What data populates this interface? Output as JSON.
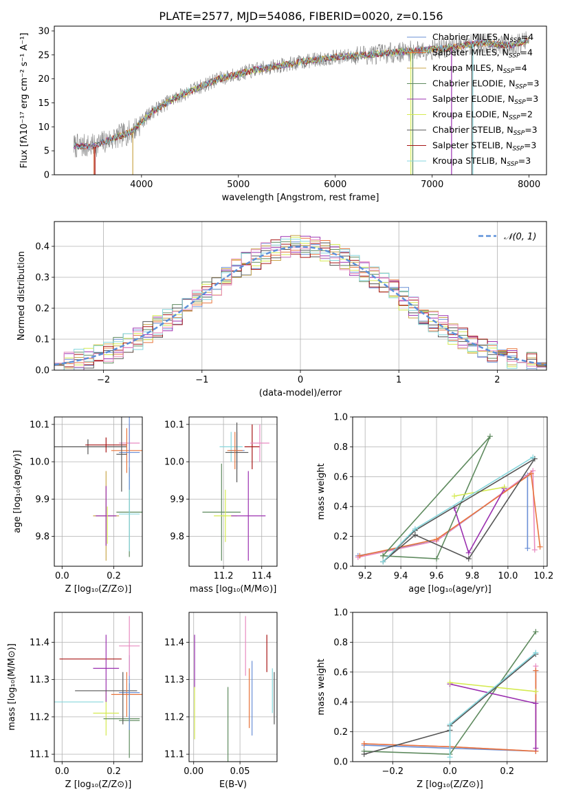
{
  "figure_title": "PLATE=2577, MJD=54086, FIBERID=0020, z=0.156",
  "colors": {
    "chabrier_miles": "#6a8fd6",
    "salpeter_miles": "#e8743b",
    "kroupa_miles": "#c9a64a",
    "chabrier_elodie": "#5e8a5e",
    "salpeter_elodie": "#9b30b0",
    "kroupa_elodie": "#d4ea4f",
    "chabrier_stelib": "#555555",
    "salpeter_stelib": "#a61414",
    "kroupa_stelib": "#86d6dc",
    "pink": "#e88ac0",
    "normal_curve": "#5b8fd9",
    "data_spectrum": "#7f7f7f"
  },
  "chart_data": [
    {
      "id": "spectrum",
      "type": "line",
      "title": "PLATE=2577, MJD=54086, FIBERID=0020, z=0.156",
      "xlabel": "wavelength [Angstrom, rest frame]",
      "ylabel": "Flux [fλ10⁻¹⁷ erg cm⁻² s⁻¹ A⁻¹]",
      "xlim": [
        3100,
        8180
      ],
      "ylim": [
        0,
        31
      ],
      "xticks": [
        4000,
        5000,
        6000,
        7000,
        8000
      ],
      "yticks": [
        0,
        5,
        10,
        15,
        20,
        25,
        30
      ],
      "legend_position": "top-right",
      "continuum": {
        "x": [
          3300,
          3500,
          3700,
          3900,
          4000,
          4100,
          4300,
          4500,
          4800,
          5000,
          5200,
          5500,
          5800,
          6000,
          6300,
          6600,
          6900,
          7200,
          7500,
          7800,
          8000
        ],
        "y": [
          6,
          6,
          7.5,
          9,
          11,
          13,
          15.5,
          17.5,
          20,
          21,
          22,
          23,
          24,
          24.5,
          25,
          25.5,
          26,
          26.5,
          27.5,
          27,
          28
        ]
      },
      "series": [
        {
          "name": "Chabrier MILES, N_SSP=4",
          "color_key": "chabrier_miles"
        },
        {
          "name": "Salpeter MILES, N_SSP=4",
          "color_key": "salpeter_miles"
        },
        {
          "name": "Kroupa MILES, N_SSP=4",
          "color_key": "kroupa_miles"
        },
        {
          "name": "Chabrier ELODIE, N_SSP=3",
          "color_key": "chabrier_elodie"
        },
        {
          "name": "Salpeter ELODIE, N_SSP=3",
          "color_key": "salpeter_elodie"
        },
        {
          "name": "Kroupa ELODIE, N_SSP=2",
          "color_key": "kroupa_elodie"
        },
        {
          "name": "Chabrier STELIB, N_SSP=3",
          "color_key": "chabrier_stelib"
        },
        {
          "name": "Salpeter STELIB, N_SSP=3",
          "color_key": "salpeter_stelib"
        },
        {
          "name": "Kroupa STELIB, N_SSP=3",
          "color_key": "kroupa_stelib"
        }
      ],
      "legend": [
        {
          "prefix": "Chabrier MILES, N",
          "sub": "SSP",
          "suffix": "=4",
          "color_key": "chabrier_miles"
        },
        {
          "prefix": "Salpeter MILES, N",
          "sub": "SSP",
          "suffix": "=4",
          "color_key": "salpeter_miles"
        },
        {
          "prefix": "Kroupa MILES, N",
          "sub": "SSP",
          "suffix": "=4",
          "color_key": "kroupa_miles"
        },
        {
          "prefix": "Chabrier ELODIE, N",
          "sub": "SSP",
          "suffix": "=3",
          "color_key": "chabrier_elodie"
        },
        {
          "prefix": "Salpeter ELODIE, N",
          "sub": "SSP",
          "suffix": "=3",
          "color_key": "salpeter_elodie"
        },
        {
          "prefix": "Kroupa ELODIE, N",
          "sub": "SSP",
          "suffix": "=2",
          "color_key": "kroupa_elodie"
        },
        {
          "prefix": "Chabrier STELIB, N",
          "sub": "SSP",
          "suffix": "=3",
          "color_key": "chabrier_stelib"
        },
        {
          "prefix": "Salpeter STELIB, N",
          "sub": "SSP",
          "suffix": "=3",
          "color_key": "salpeter_stelib"
        },
        {
          "prefix": "Kroupa STELIB, N",
          "sub": "SSP",
          "suffix": "=3",
          "color_key": "kroupa_stelib"
        }
      ]
    },
    {
      "id": "residuals",
      "type": "line",
      "xlabel": "(data-model)/error",
      "ylabel": "Normed distribution",
      "xlim": [
        -2.5,
        2.5
      ],
      "ylim": [
        0,
        0.48
      ],
      "xticks": [
        -2,
        -1,
        0,
        1,
        2
      ],
      "xtick_labels": [
        "−2",
        "−1",
        "0",
        "1",
        "2"
      ],
      "yticks": [
        0.0,
        0.1,
        0.2,
        0.3,
        0.4
      ],
      "ytick_labels": [
        "0.0",
        "0.1",
        "0.2",
        "0.3",
        "0.4"
      ],
      "grid": true,
      "legend_position": "top-right",
      "legend_label": "𝒩(0, 1)",
      "curve": {
        "name": "N(0, 1)",
        "mean": 0,
        "sigma": 1
      }
    },
    {
      "id": "age_vs_Z",
      "type": "scatter",
      "xlabel": "Z [log₁₀(Z/Z⊙)]",
      "ylabel": "age  [log₁₀(age/yr)]",
      "xlim": [
        -0.03,
        0.31
      ],
      "ylim": [
        9.72,
        10.12
      ],
      "xticks": [
        0.0,
        0.2
      ],
      "xtick_labels": [
        "0.0",
        "0.2"
      ],
      "yticks": [
        9.8,
        9.9,
        10.0,
        10.1
      ],
      "ytick_labels": [
        "9.8",
        "9.9",
        "10.0",
        "10.1"
      ],
      "grid": true,
      "points": [
        {
          "x": 0.17,
          "y": 9.855,
          "xerr": 0.05,
          "yerr": 0.12,
          "color_key": "kroupa_miles"
        },
        {
          "x": 0.17,
          "y": 9.855,
          "xerr": 0.04,
          "yerr": 0.08,
          "color_key": "salpeter_elodie"
        },
        {
          "x": 0.175,
          "y": 9.83,
          "xerr": 0.0,
          "yerr": 0.05,
          "color_key": "kroupa_elodie"
        },
        {
          "x": 0.26,
          "y": 9.865,
          "xerr": 0.05,
          "yerr": 0.12,
          "color_key": "chabrier_elodie"
        },
        {
          "x": 0.26,
          "y": 9.86,
          "xerr": 0.04,
          "yerr": 0.1,
          "color_key": "kroupa_stelib"
        },
        {
          "x": 0.1,
          "y": 10.04,
          "xerr": 0.15,
          "yerr": 0.02,
          "color_key": "chabrier_stelib"
        },
        {
          "x": 0.17,
          "y": 10.045,
          "xerr": 0.08,
          "yerr": 0.02,
          "color_key": "salpeter_stelib"
        },
        {
          "x": 0.26,
          "y": 10.05,
          "xerr": 0.04,
          "yerr": 0.05,
          "color_key": "pink"
        },
        {
          "x": 0.25,
          "y": 10.03,
          "xerr": 0.06,
          "yerr": 0.06,
          "color_key": "salpeter_miles"
        },
        {
          "x": 0.26,
          "y": 10.025,
          "xerr": 0.04,
          "yerr": 0.1,
          "color_key": "chabrier_miles"
        },
        {
          "x": 0.23,
          "y": 10.02,
          "xerr": 0.02,
          "yerr": 0.1,
          "color_key": "chabrier_stelib"
        }
      ]
    },
    {
      "id": "age_vs_mass",
      "type": "scatter",
      "xlabel": "mass [log₁₀(M/M⊙)]",
      "xlim": [
        11.02,
        11.48
      ],
      "ylim": [
        9.72,
        10.12
      ],
      "xticks": [
        11.2,
        11.4
      ],
      "xtick_labels": [
        "11.2",
        "11.4"
      ],
      "yticks": [
        9.8,
        9.9,
        10.0,
        10.1
      ],
      "ytick_labels": [
        "9.8",
        "9.9",
        "10.0",
        "10.1"
      ],
      "grid": true,
      "points": [
        {
          "x": 11.19,
          "y": 9.865,
          "xerr": 0.1,
          "yerr": 0.13,
          "color_key": "chabrier_elodie"
        },
        {
          "x": 11.21,
          "y": 9.855,
          "xerr": 0.06,
          "yerr": 0.07,
          "color_key": "kroupa_elodie"
        },
        {
          "x": 11.33,
          "y": 9.855,
          "xerr": 0.09,
          "yerr": 0.12,
          "color_key": "salpeter_elodie"
        },
        {
          "x": 11.24,
          "y": 10.04,
          "xerr": 0.06,
          "yerr": 0.04,
          "color_key": "kroupa_stelib"
        },
        {
          "x": 11.27,
          "y": 10.03,
          "xerr": 0.04,
          "yerr": 0.05,
          "color_key": "chabrier_miles"
        },
        {
          "x": 11.27,
          "y": 10.025,
          "xerr": 0.06,
          "yerr": 0.08,
          "color_key": "chabrier_stelib"
        },
        {
          "x": 11.35,
          "y": 10.04,
          "xerr": 0.04,
          "yerr": 0.06,
          "color_key": "salpeter_stelib"
        },
        {
          "x": 11.39,
          "y": 10.05,
          "xerr": 0.05,
          "yerr": 0.05,
          "color_key": "pink"
        },
        {
          "x": 11.26,
          "y": 10.03,
          "xerr": 0.04,
          "yerr": 0.05,
          "color_key": "salpeter_miles"
        }
      ]
    },
    {
      "id": "mw_vs_age",
      "type": "line",
      "xlabel": "age  [log₁₀(age/yr)]",
      "ylabel": "mass weight",
      "xlim": [
        9.13,
        10.22
      ],
      "ylim": [
        0,
        1.0
      ],
      "xticks": [
        9.2,
        9.4,
        9.6,
        9.8,
        10.0,
        10.2
      ],
      "xtick_labels": [
        "9.2",
        "9.4",
        "9.6",
        "9.8",
        "10.0",
        "10.2"
      ],
      "yticks": [
        0,
        0.2,
        0.4,
        0.6,
        0.8,
        1.0
      ],
      "ytick_labels": [
        "0.0",
        "0.2",
        "0.4",
        "0.6",
        "0.8",
        "1.0"
      ],
      "grid": true,
      "series": [
        {
          "color_key": "chabrier_miles",
          "x": [
            9.16,
            9.6,
            10.11,
            10.11
          ],
          "y": [
            0.07,
            0.17,
            0.61,
            0.12
          ]
        },
        {
          "color_key": "pink",
          "x": [
            9.16,
            9.6,
            10.14,
            10.15
          ],
          "y": [
            0.06,
            0.17,
            0.64,
            0.11
          ]
        },
        {
          "color_key": "salpeter_miles",
          "x": [
            9.17,
            9.6,
            10.13,
            10.18
          ],
          "y": [
            0.07,
            0.18,
            0.62,
            0.13
          ]
        },
        {
          "color_key": "chabrier_elodie",
          "x": [
            9.3,
            9.6,
            9.9,
            9.3
          ],
          "y": [
            0.07,
            0.05,
            0.87,
            0.07
          ]
        },
        {
          "color_key": "salpeter_elodie",
          "x": [
            9.7,
            9.78,
            9.98
          ],
          "y": [
            0.39,
            0.09,
            0.52
          ]
        },
        {
          "color_key": "kroupa_elodie",
          "x": [
            9.7,
            9.98
          ],
          "y": [
            0.47,
            0.53
          ]
        },
        {
          "color_key": "chabrier_stelib",
          "x": [
            9.3,
            9.48,
            9.78,
            10.15,
            9.48,
            9.3
          ],
          "y": [
            0.03,
            0.21,
            0.05,
            0.72,
            0.24,
            0.03
          ]
        },
        {
          "color_key": "kroupa_stelib",
          "x": [
            9.3,
            9.48,
            10.14
          ],
          "y": [
            0.03,
            0.25,
            0.73
          ]
        }
      ]
    },
    {
      "id": "mass_vs_Z",
      "type": "scatter",
      "xlabel": "Z [log₁₀(Z/Z⊙)]",
      "ylabel": "mass [log₁₀(M/M⊙)]",
      "xlim": [
        -0.03,
        0.31
      ],
      "ylim": [
        11.08,
        11.48
      ],
      "xticks": [
        0.0,
        0.2
      ],
      "xtick_labels": [
        "0.0",
        "0.2"
      ],
      "yticks": [
        11.1,
        11.2,
        11.3,
        11.4
      ],
      "ytick_labels": [
        "11.1",
        "11.2",
        "11.3",
        "11.4"
      ],
      "grid": true,
      "points": [
        {
          "x": 0.06,
          "y": 11.24,
          "xerr": 0.1,
          "yerr": 0.0,
          "color_key": "kroupa_stelib"
        },
        {
          "x": 0.11,
          "y": 11.355,
          "xerr": 0.12,
          "yerr": 0.0,
          "color_key": "salpeter_stelib"
        },
        {
          "x": 0.17,
          "y": 11.21,
          "xerr": 0.05,
          "yerr": 0.06,
          "color_key": "kroupa_elodie"
        },
        {
          "x": 0.17,
          "y": 11.33,
          "xerr": 0.05,
          "yerr": 0.09,
          "color_key": "salpeter_elodie"
        },
        {
          "x": 0.26,
          "y": 11.19,
          "xerr": 0.04,
          "yerr": 0.1,
          "color_key": "chabrier_elodie"
        },
        {
          "x": 0.23,
          "y": 11.195,
          "xerr": 0.07,
          "yerr": 0.0,
          "color_key": "chabrier_elodie"
        },
        {
          "x": 0.17,
          "y": 11.27,
          "xerr": 0.12,
          "yerr": 0.0,
          "color_key": "chabrier_stelib"
        },
        {
          "x": 0.25,
          "y": 11.26,
          "xerr": 0.06,
          "yerr": 0.06,
          "color_key": "salpeter_miles"
        },
        {
          "x": 0.26,
          "y": 11.265,
          "xerr": 0.04,
          "yerr": 0.1,
          "color_key": "chabrier_miles"
        },
        {
          "x": 0.26,
          "y": 11.39,
          "xerr": 0.04,
          "yerr": 0.08,
          "color_key": "pink"
        },
        {
          "x": 0.235,
          "y": 11.25,
          "xerr": 0.0,
          "yerr": 0.07,
          "color_key": "chabrier_stelib"
        }
      ]
    },
    {
      "id": "mass_vs_ebv",
      "type": "scatter",
      "xlabel": "E(B-V)",
      "xlim": [
        -0.005,
        0.09
      ],
      "ylim": [
        11.08,
        11.48
      ],
      "xticks": [
        0.0,
        0.05
      ],
      "xtick_labels": [
        "0.00",
        "0.05"
      ],
      "yticks": [
        11.1,
        11.2,
        11.3,
        11.4
      ],
      "ytick_labels": [
        "11.1",
        "11.2",
        "11.3",
        "11.4"
      ],
      "grid": true,
      "points": [
        {
          "x": 0.001,
          "y": 11.35,
          "xerr": 0,
          "yerr": 0.07,
          "color_key": "salpeter_elodie"
        },
        {
          "x": 0.001,
          "y": 11.21,
          "xerr": 0,
          "yerr": 0.07,
          "color_key": "kroupa_elodie"
        },
        {
          "x": 0.037,
          "y": 11.18,
          "xerr": 0,
          "yerr": 0.1,
          "color_key": "chabrier_elodie"
        },
        {
          "x": 0.056,
          "y": 11.39,
          "xerr": 0,
          "yerr": 0.08,
          "color_key": "pink"
        },
        {
          "x": 0.06,
          "y": 11.25,
          "xerr": 0,
          "yerr": 0.08,
          "color_key": "salpeter_miles"
        },
        {
          "x": 0.063,
          "y": 11.25,
          "xerr": 0,
          "yerr": 0.1,
          "color_key": "chabrier_miles"
        },
        {
          "x": 0.079,
          "y": 11.37,
          "xerr": 0,
          "yerr": 0.05,
          "color_key": "salpeter_stelib"
        },
        {
          "x": 0.085,
          "y": 11.27,
          "xerr": 0,
          "yerr": 0.06,
          "color_key": "kroupa_stelib"
        },
        {
          "x": 0.087,
          "y": 11.25,
          "xerr": 0,
          "yerr": 0.07,
          "color_key": "chabrier_stelib"
        }
      ]
    },
    {
      "id": "mw_vs_Z",
      "type": "line",
      "xlabel": "Z [log₁₀(Z/Z⊙)]",
      "ylabel": "mass weight",
      "xlim": [
        -0.34,
        0.34
      ],
      "ylim": [
        0,
        1.0
      ],
      "xticks": [
        -0.2,
        0.0,
        0.2
      ],
      "xtick_labels": [
        "−0.2",
        "0.0",
        "0.2"
      ],
      "yticks": [
        0,
        0.2,
        0.4,
        0.6,
        0.8,
        1.0
      ],
      "ytick_labels": [
        "0.0",
        "0.2",
        "0.4",
        "0.6",
        "0.8",
        "1.0"
      ],
      "grid": true,
      "series": [
        {
          "color_key": "chabrier_miles",
          "x": [
            -0.3,
            0.0,
            0.3,
            0.3
          ],
          "y": [
            0.11,
            0.09,
            0.07,
            0.61
          ]
        },
        {
          "color_key": "pink",
          "x": [
            -0.3,
            0.0,
            0.3,
            0.3
          ],
          "y": [
            0.12,
            0.1,
            0.07,
            0.64
          ]
        },
        {
          "color_key": "salpeter_miles",
          "x": [
            -0.3,
            0.0,
            0.3,
            0.3
          ],
          "y": [
            0.12,
            0.1,
            0.07,
            0.61
          ]
        },
        {
          "color_key": "chabrier_elodie",
          "x": [
            -0.3,
            0.0,
            0.3
          ],
          "y": [
            0.07,
            0.05,
            0.87
          ]
        },
        {
          "color_key": "salpeter_elodie",
          "x": [
            0.0,
            0.3,
            0.3
          ],
          "y": [
            0.52,
            0.39,
            0.09
          ]
        },
        {
          "color_key": "kroupa_elodie",
          "x": [
            0.0,
            0.3
          ],
          "y": [
            0.53,
            0.47
          ]
        },
        {
          "color_key": "chabrier_stelib",
          "x": [
            -0.3,
            0.0,
            0.0,
            0.3
          ],
          "y": [
            0.05,
            0.21,
            0.24,
            0.72
          ]
        },
        {
          "color_key": "kroupa_stelib",
          "x": [
            0.0,
            0.0,
            0.3
          ],
          "y": [
            0.03,
            0.25,
            0.73
          ]
        }
      ]
    }
  ]
}
